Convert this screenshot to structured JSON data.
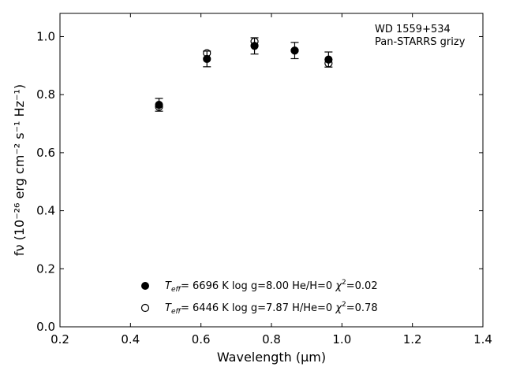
{
  "chart_data": {
    "type": "scatter",
    "xlabel": "Wavelength (μm)",
    "ylabel": "fν (10⁻²⁶ erg cm⁻² s⁻¹ Hz⁻¹)",
    "xlim": [
      0.2,
      1.4
    ],
    "ylim": [
      0.0,
      1.08
    ],
    "xticks": [
      0.2,
      0.4,
      0.6,
      0.8,
      1.0,
      1.2,
      1.4
    ],
    "xtick_labels": [
      "0.2",
      "0.4",
      "0.6",
      "0.8",
      "1.0",
      "1.2",
      "1.4"
    ],
    "yticks": [
      0.0,
      0.2,
      0.4,
      0.6,
      0.8,
      1.0
    ],
    "ytick_labels": [
      "0.0",
      "0.2",
      "0.4",
      "0.6",
      "0.8",
      "1.0"
    ],
    "grid": false,
    "annotation": [
      "WD 1559+534",
      "Pan-STARRS grizy"
    ],
    "observed": {
      "x": [
        0.481,
        0.617,
        0.752,
        0.866,
        0.962
      ],
      "y": [
        0.765,
        0.923,
        0.968,
        0.952,
        0.921
      ],
      "yerr": [
        0.022,
        0.027,
        0.028,
        0.028,
        0.026
      ]
    },
    "series": [
      {
        "marker": "filled-circle",
        "x": [
          0.481,
          0.617,
          0.752,
          0.866,
          0.962
        ],
        "y": [
          0.765,
          0.923,
          0.968,
          0.952,
          0.921
        ],
        "legend_parts": {
          "teff": "6696 K",
          "rest": "log g=8.00  He/H=0",
          "chi2": "=0.02"
        }
      },
      {
        "marker": "open-circle",
        "x": [
          0.481,
          0.617,
          0.752,
          0.866,
          0.962
        ],
        "y": [
          0.758,
          0.943,
          0.983,
          0.952,
          0.908
        ],
        "legend_parts": {
          "teff": "6446 K",
          "rest": "log g=7.87  H/He=0",
          "chi2": "=0.78"
        }
      }
    ],
    "legend_placement": "lower-center"
  }
}
